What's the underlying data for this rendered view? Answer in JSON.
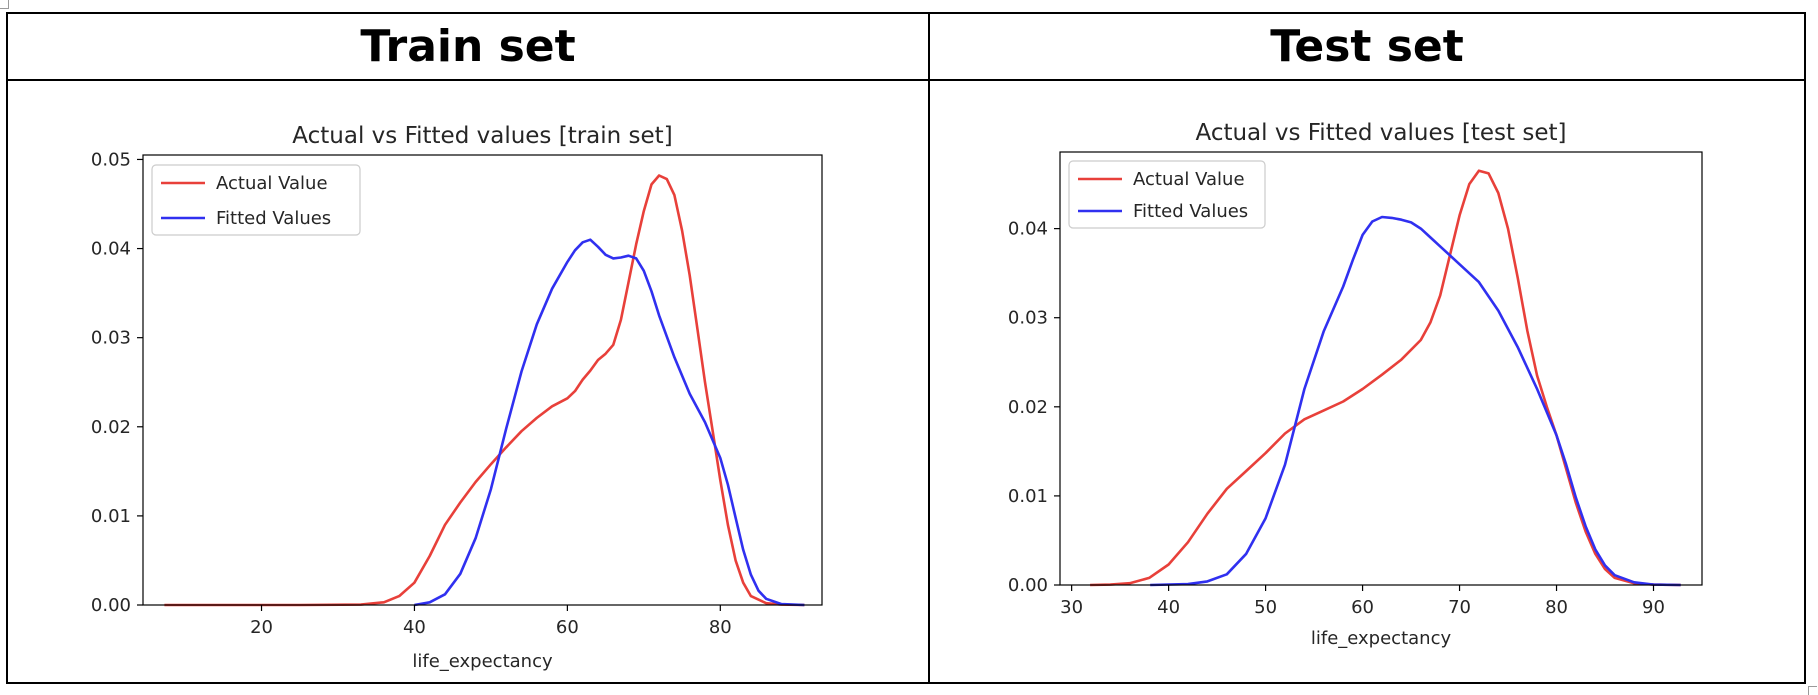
{
  "headers": {
    "left": "Train set",
    "right": "Test set"
  },
  "colors": {
    "actual": "#e8403a",
    "fitted": "#3030f0"
  },
  "chart_data": [
    {
      "type": "line",
      "title": "Actual vs Fitted values [train set]",
      "xlabel": "life_expectancy",
      "ylabel": "",
      "xlim": [
        4.5,
        93.3
      ],
      "ylim": [
        0,
        0.0505
      ],
      "xticks": [
        20,
        40,
        60,
        80
      ],
      "xtick_labels": [
        "20",
        "40",
        "60",
        "80"
      ],
      "yticks": [
        0,
        0.01,
        0.02,
        0.03,
        0.04,
        0.05
      ],
      "ytick_labels": [
        "0.00",
        "0.01",
        "0.02",
        "0.03",
        "0.04",
        "0.05"
      ],
      "legend_position": "top-left",
      "grid": false,
      "series": [
        {
          "name": "Actual Value",
          "color": "#e8403a",
          "points": [
            [
              7.3,
              0
            ],
            [
              15,
              0
            ],
            [
              25,
              0
            ],
            [
              33,
              5e-05
            ],
            [
              36,
              0.0003
            ],
            [
              38,
              0.001
            ],
            [
              40,
              0.0025
            ],
            [
              42,
              0.0055
            ],
            [
              44,
              0.009
            ],
            [
              46,
              0.0115
            ],
            [
              48,
              0.0138
            ],
            [
              50,
              0.0158
            ],
            [
              52,
              0.0177
            ],
            [
              54,
              0.0195
            ],
            [
              56,
              0.021
            ],
            [
              58,
              0.0223
            ],
            [
              60,
              0.0232
            ],
            [
              61,
              0.024
            ],
            [
              62,
              0.0253
            ],
            [
              63,
              0.0263
            ],
            [
              64,
              0.0275
            ],
            [
              65,
              0.0282
            ],
            [
              66,
              0.0292
            ],
            [
              67,
              0.032
            ],
            [
              68,
              0.0362
            ],
            [
              69,
              0.0405
            ],
            [
              70,
              0.0442
            ],
            [
              71,
              0.0472
            ],
            [
              72,
              0.0482
            ],
            [
              73,
              0.0478
            ],
            [
              74,
              0.046
            ],
            [
              75,
              0.042
            ],
            [
              76,
              0.037
            ],
            [
              77,
              0.031
            ],
            [
              78,
              0.025
            ],
            [
              79,
              0.0195
            ],
            [
              80,
              0.014
            ],
            [
              81,
              0.009
            ],
            [
              82,
              0.005
            ],
            [
              83,
              0.0025
            ],
            [
              84,
              0.001
            ],
            [
              86,
              0.0002
            ],
            [
              88,
              5e-05
            ],
            [
              91,
              0
            ]
          ]
        },
        {
          "name": "Fitted Values",
          "color": "#3030f0",
          "points": [
            [
              40,
              0
            ],
            [
              42,
              0.0003
            ],
            [
              44,
              0.0012
            ],
            [
              46,
              0.0035
            ],
            [
              48,
              0.0075
            ],
            [
              50,
              0.013
            ],
            [
              52,
              0.0198
            ],
            [
              54,
              0.0262
            ],
            [
              56,
              0.0315
            ],
            [
              58,
              0.0355
            ],
            [
              60,
              0.0385
            ],
            [
              61,
              0.0398
            ],
            [
              62,
              0.0407
            ],
            [
              63,
              0.041
            ],
            [
              64,
              0.0402
            ],
            [
              65,
              0.0393
            ],
            [
              66,
              0.0389
            ],
            [
              67,
              0.039
            ],
            [
              68,
              0.0392
            ],
            [
              69,
              0.0389
            ],
            [
              70,
              0.0375
            ],
            [
              71,
              0.0352
            ],
            [
              72,
              0.0325
            ],
            [
              74,
              0.0278
            ],
            [
              76,
              0.0237
            ],
            [
              78,
              0.0205
            ],
            [
              80,
              0.0165
            ],
            [
              81,
              0.0135
            ],
            [
              82,
              0.0098
            ],
            [
              83,
              0.0062
            ],
            [
              84,
              0.0034
            ],
            [
              85,
              0.0016
            ],
            [
              86,
              0.0007
            ],
            [
              88,
              0.0001
            ],
            [
              91,
              0
            ]
          ]
        }
      ]
    },
    {
      "type": "line",
      "title": "Actual vs Fitted values [test set]",
      "xlabel": "life_expectancy",
      "ylabel": "",
      "xlim": [
        28.8,
        95
      ],
      "ylim": [
        0,
        0.0486
      ],
      "xticks": [
        30,
        40,
        50,
        60,
        70,
        80,
        90
      ],
      "xtick_labels": [
        "30",
        "40",
        "50",
        "60",
        "70",
        "80",
        "90"
      ],
      "yticks": [
        0,
        0.01,
        0.02,
        0.03,
        0.04
      ],
      "ytick_labels": [
        "0.00",
        "0.01",
        "0.02",
        "0.03",
        "0.04"
      ],
      "legend_position": "top-left",
      "grid": false,
      "series": [
        {
          "name": "Actual Value",
          "color": "#e8403a",
          "points": [
            [
              31.9,
              0
            ],
            [
              34,
              5e-05
            ],
            [
              36,
              0.0002
            ],
            [
              38,
              0.0008
            ],
            [
              40,
              0.0023
            ],
            [
              42,
              0.0048
            ],
            [
              44,
              0.008
            ],
            [
              46,
              0.0108
            ],
            [
              48,
              0.0128
            ],
            [
              50,
              0.0148
            ],
            [
              52,
              0.017
            ],
            [
              54,
              0.0186
            ],
            [
              56,
              0.0196
            ],
            [
              58,
              0.0206
            ],
            [
              60,
              0.022
            ],
            [
              62,
              0.0236
            ],
            [
              64,
              0.0253
            ],
            [
              66,
              0.0275
            ],
            [
              67,
              0.0295
            ],
            [
              68,
              0.0325
            ],
            [
              69,
              0.037
            ],
            [
              70,
              0.0415
            ],
            [
              71,
              0.045
            ],
            [
              72,
              0.0465
            ],
            [
              73,
              0.0462
            ],
            [
              74,
              0.044
            ],
            [
              75,
              0.04
            ],
            [
              76,
              0.0345
            ],
            [
              77,
              0.0285
            ],
            [
              78,
              0.0235
            ],
            [
              79,
              0.02
            ],
            [
              80,
              0.0168
            ],
            [
              81,
              0.013
            ],
            [
              82,
              0.0092
            ],
            [
              83,
              0.006
            ],
            [
              84,
              0.0035
            ],
            [
              85,
              0.0018
            ],
            [
              86,
              0.0008
            ],
            [
              88,
              0.0002
            ],
            [
              90,
              5e-05
            ],
            [
              92.8,
              0
            ]
          ]
        },
        {
          "name": "Fitted Values",
          "color": "#3030f0",
          "points": [
            [
              38.1,
              0
            ],
            [
              42,
              0.0001
            ],
            [
              44,
              0.0004
            ],
            [
              46,
              0.0012
            ],
            [
              48,
              0.0035
            ],
            [
              50,
              0.0075
            ],
            [
              52,
              0.0135
            ],
            [
              54,
              0.022
            ],
            [
              56,
              0.0285
            ],
            [
              58,
              0.0335
            ],
            [
              59,
              0.0365
            ],
            [
              60,
              0.0393
            ],
            [
              61,
              0.0408
            ],
            [
              62,
              0.0413
            ],
            [
              63,
              0.0412
            ],
            [
              64,
              0.041
            ],
            [
              65,
              0.0407
            ],
            [
              66,
              0.04
            ],
            [
              67,
              0.039
            ],
            [
              68,
              0.038
            ],
            [
              70,
              0.036
            ],
            [
              72,
              0.034
            ],
            [
              74,
              0.0308
            ],
            [
              76,
              0.0267
            ],
            [
              78,
              0.022
            ],
            [
              80,
              0.0168
            ],
            [
              81,
              0.0135
            ],
            [
              82,
              0.0098
            ],
            [
              83,
              0.0066
            ],
            [
              84,
              0.004
            ],
            [
              85,
              0.0022
            ],
            [
              86,
              0.0011
            ],
            [
              88,
              0.0003
            ],
            [
              90,
              5e-05
            ],
            [
              92.8,
              0
            ]
          ]
        }
      ]
    }
  ]
}
